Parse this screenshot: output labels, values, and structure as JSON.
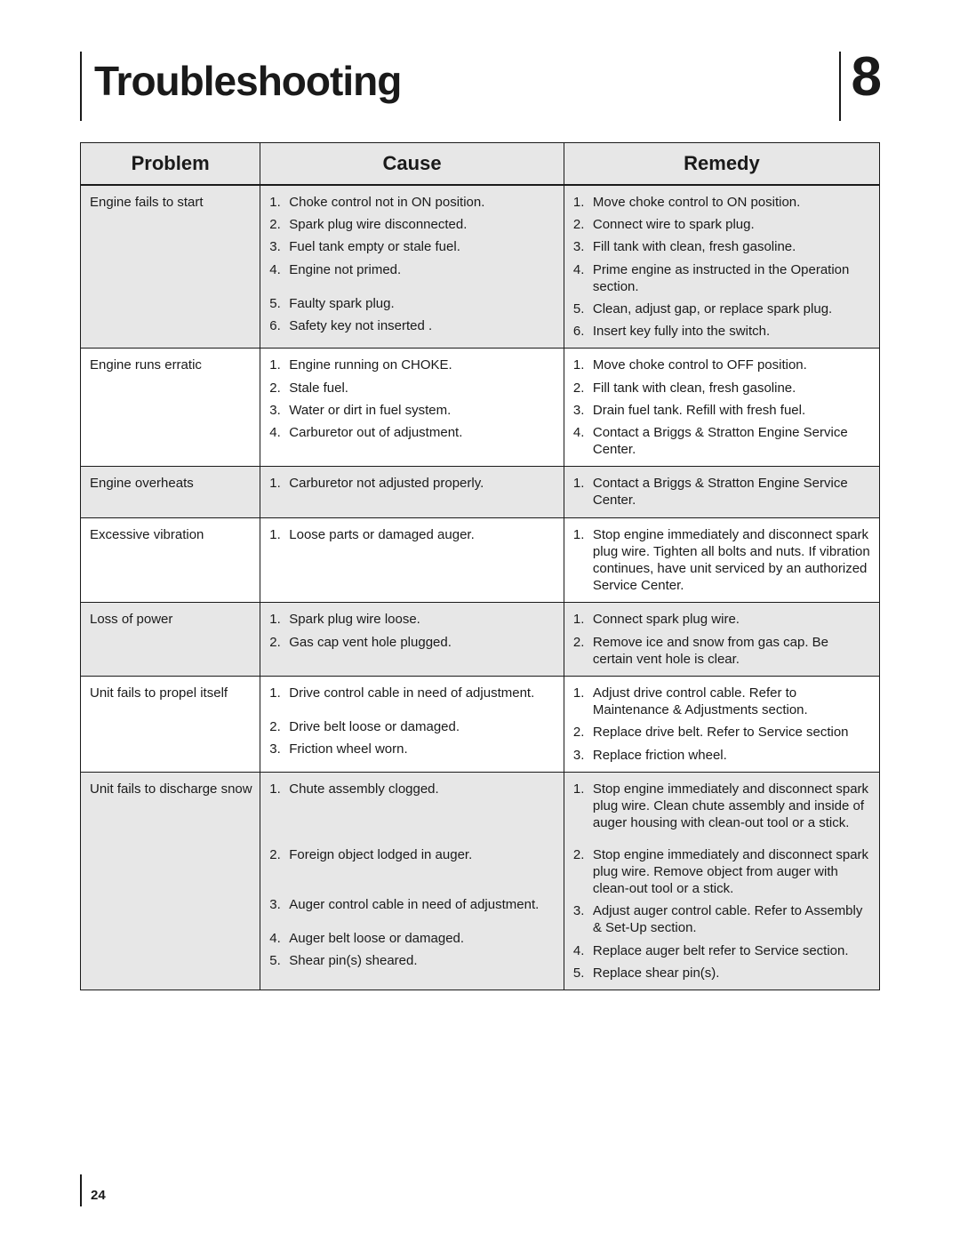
{
  "header": {
    "title": "Troubleshooting",
    "chapter_number": "8"
  },
  "table": {
    "headers": {
      "problem": "Problem",
      "cause": "Cause",
      "remedy": "Remedy"
    },
    "rows": [
      {
        "problem": "Engine fails to start",
        "causes": [
          "Choke control not in ON position.",
          "Spark plug wire disconnected.",
          "Fuel tank empty or stale fuel.",
          "Engine not primed.",
          "Faulty spark plug.",
          "Safety key not inserted ."
        ],
        "remedies": [
          "Move choke control to ON position.",
          "Connect wire to spark plug.",
          "Fill tank with clean, fresh gasoline.",
          "Prime engine as instructed in the Operation section.",
          "Clean, adjust gap, or replace spark plug.",
          "Insert key fully into the switch."
        ],
        "heights": [
          "",
          "",
          "",
          "tall",
          "",
          ""
        ]
      },
      {
        "problem": "Engine runs erratic",
        "causes": [
          "Engine running on CHOKE.",
          "Stale fuel.",
          "Water or dirt in fuel system.",
          "Carburetor out of adjustment."
        ],
        "remedies": [
          "Move choke control to OFF position.",
          "Fill tank with clean, fresh gasoline.",
          "Drain fuel tank. Refill with fresh fuel.",
          "Contact a Briggs & Stratton Engine Service Center."
        ],
        "heights": [
          "",
          "",
          "",
          "tall"
        ]
      },
      {
        "problem": "Engine overheats",
        "causes": [
          "Carburetor not adjusted properly."
        ],
        "remedies": [
          "Contact a Briggs & Stratton Engine Service Center."
        ],
        "heights": [
          "tall"
        ]
      },
      {
        "problem": "Excessive vibration",
        "causes": [
          "Loose parts or damaged auger."
        ],
        "remedies": [
          "Stop engine immediately and disconnect spark plug wire. Tighten all bolts and nuts. If vibration continues, have unit serviced by an authorized Service Center."
        ],
        "heights": [
          "tall-4"
        ]
      },
      {
        "problem": "Loss of power",
        "causes": [
          "Spark plug wire loose.",
          "Gas cap vent hole plugged."
        ],
        "remedies": [
          "Connect spark plug wire.",
          "Remove ice and snow from gas cap. Be certain vent hole is clear."
        ],
        "heights": [
          "",
          "tall"
        ]
      },
      {
        "problem": "Unit fails to propel itself",
        "causes": [
          "Drive control cable in need of adjustment.",
          "Drive belt loose or damaged.",
          "Friction wheel worn."
        ],
        "remedies": [
          "Adjust drive control cable. Refer to Maintenance &  Adjustments section.",
          "Replace drive belt. Refer to Service section",
          "Replace friction wheel."
        ],
        "heights": [
          "tall",
          "",
          ""
        ]
      },
      {
        "problem": "Unit fails to discharge snow",
        "causes": [
          "Chute assembly clogged.",
          "Foreign object lodged in auger.",
          "Auger control cable in need of adjustment.",
          "Auger belt loose or damaged.",
          "Shear pin(s) sheared."
        ],
        "remedies": [
          "Stop engine immediately and disconnect spark plug wire. Clean chute assembly and inside of auger housing with clean-out tool or a stick.",
          "Stop engine immediately and disconnect spark plug wire. Remove object from auger with clean-out tool or a stick.",
          "Adjust auger control cable. Refer to Assembly & Set-Up section.",
          "Replace auger belt refer to Service section.",
          "Replace shear pin(s)."
        ],
        "heights": [
          "tall-4",
          "tall-3",
          "tall",
          "",
          ""
        ]
      }
    ]
  },
  "footer": {
    "page_number": "24"
  },
  "colors": {
    "text": "#1a1a1a",
    "background": "#ffffff",
    "alt_row": "#e7e7e7",
    "border": "#1a1a1a"
  },
  "typography": {
    "title_fontsize": 46,
    "chapter_fontsize": 62,
    "header_fontsize": 22,
    "body_fontsize": 15
  }
}
